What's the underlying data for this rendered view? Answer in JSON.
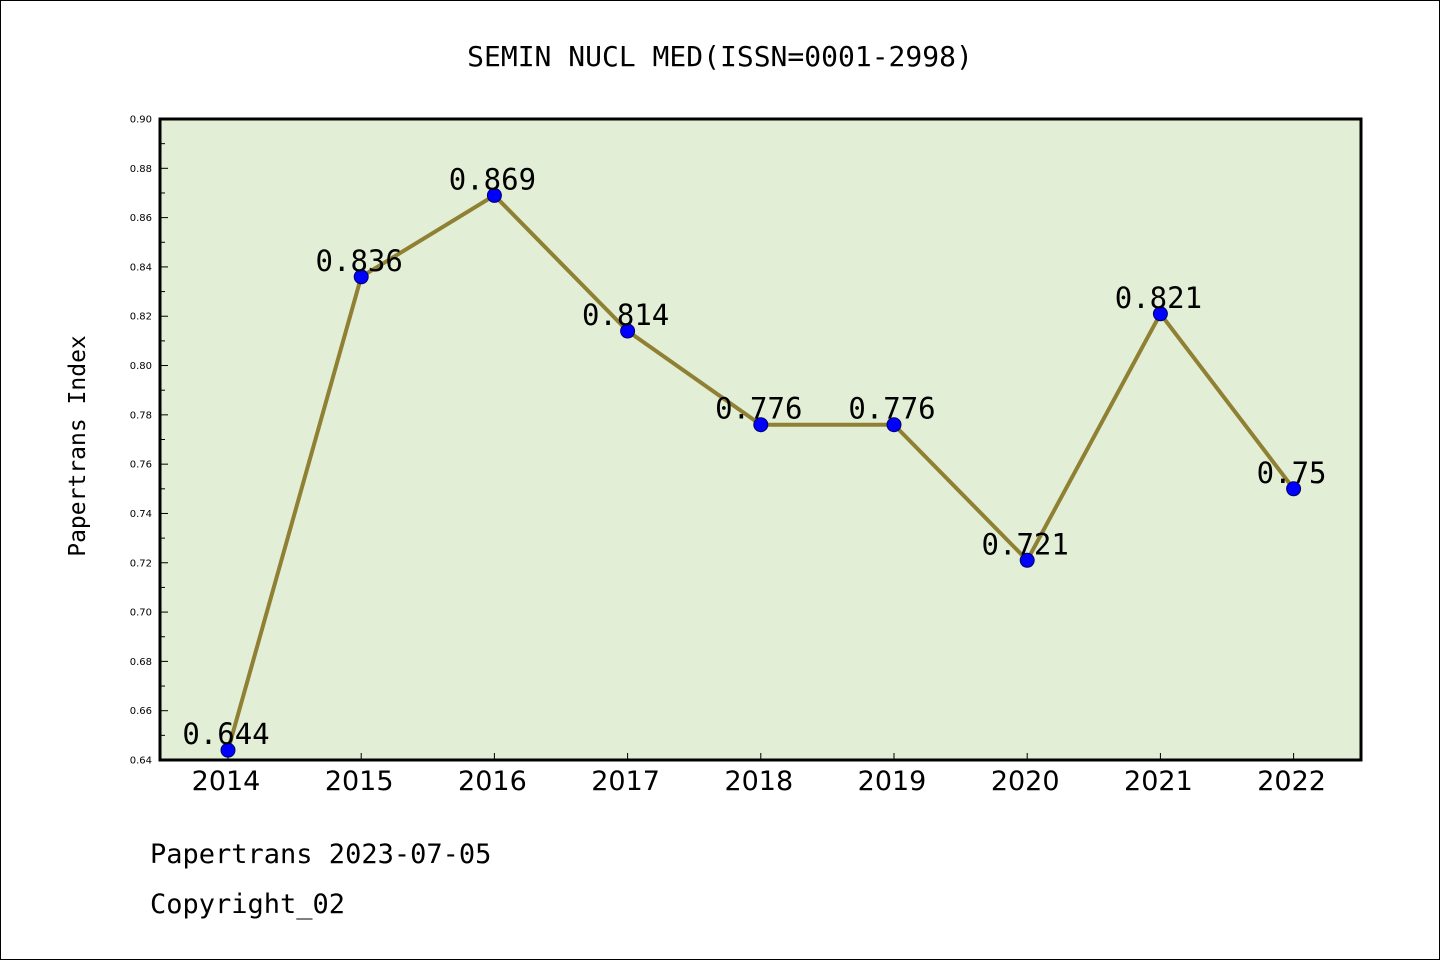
{
  "chart_data": {
    "type": "line",
    "title": "SEMIN NUCL MED(ISSN=0001-2998)",
    "ylabel": "Papertrans Index",
    "xlabel": "",
    "categories": [
      "2014",
      "2015",
      "2016",
      "2017",
      "2018",
      "2019",
      "2020",
      "2021",
      "2022"
    ],
    "series": [
      {
        "values": [
          0.644,
          0.836,
          0.869,
          0.814,
          0.776,
          0.776,
          0.721,
          0.821,
          0.75
        ],
        "labels": [
          "0.644",
          "0.836",
          "0.869",
          "0.814",
          "0.776",
          "0.776",
          "0.721",
          "0.821",
          "0.75"
        ]
      }
    ],
    "ylim": [
      0.64,
      0.9
    ],
    "yticks": [
      "0.64",
      "0.66",
      "0.68",
      "0.70",
      "0.72",
      "0.74",
      "0.76",
      "0.78",
      "0.80",
      "0.82",
      "0.84",
      "0.86",
      "0.88",
      "0.90"
    ],
    "grid": false,
    "legend": "none",
    "colors": {
      "plot_background": "#e2efd6",
      "line": "#8f8033",
      "marker": "#0000ff",
      "marker_edge": "#000066",
      "axis": "#000000"
    }
  },
  "footer": {
    "line1": "Papertrans 2023-07-05",
    "line2": "Copyright_02"
  }
}
